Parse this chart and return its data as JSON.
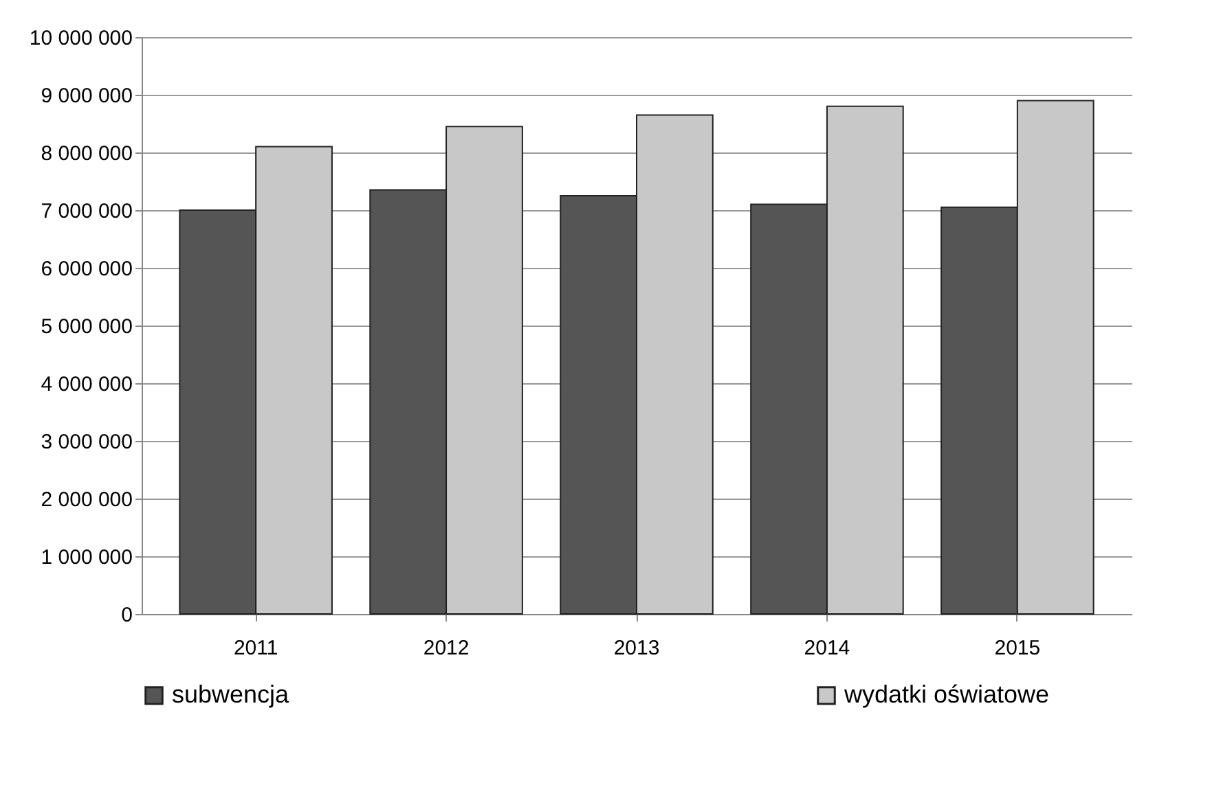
{
  "chart_data": {
    "type": "bar",
    "categories": [
      "2011",
      "2012",
      "2013",
      "2014",
      "2015"
    ],
    "series": [
      {
        "name": "subwencja",
        "color": "#555555",
        "values": [
          7000000,
          7350000,
          7250000,
          7100000,
          7050000
        ]
      },
      {
        "name": "wydatki oświatowe",
        "color": "#c8c8c8",
        "values": [
          8100000,
          8450000,
          8650000,
          8800000,
          8900000
        ]
      }
    ],
    "ylim": [
      0,
      10000000
    ],
    "yticks": [
      {
        "value": 0,
        "label": "0"
      },
      {
        "value": 1000000,
        "label": "1 000 000"
      },
      {
        "value": 2000000,
        "label": "2 000 000"
      },
      {
        "value": 3000000,
        "label": "3 000 000"
      },
      {
        "value": 4000000,
        "label": "4 000 000"
      },
      {
        "value": 5000000,
        "label": "5 000 000"
      },
      {
        "value": 6000000,
        "label": "6 000 000"
      },
      {
        "value": 7000000,
        "label": "7 000 000"
      },
      {
        "value": 8000000,
        "label": "8 000 000"
      },
      {
        "value": 9000000,
        "label": "9 000 000"
      },
      {
        "value": 10000000,
        "label": "10 000 000"
      }
    ],
    "grid": "y",
    "legend": "bottom"
  }
}
